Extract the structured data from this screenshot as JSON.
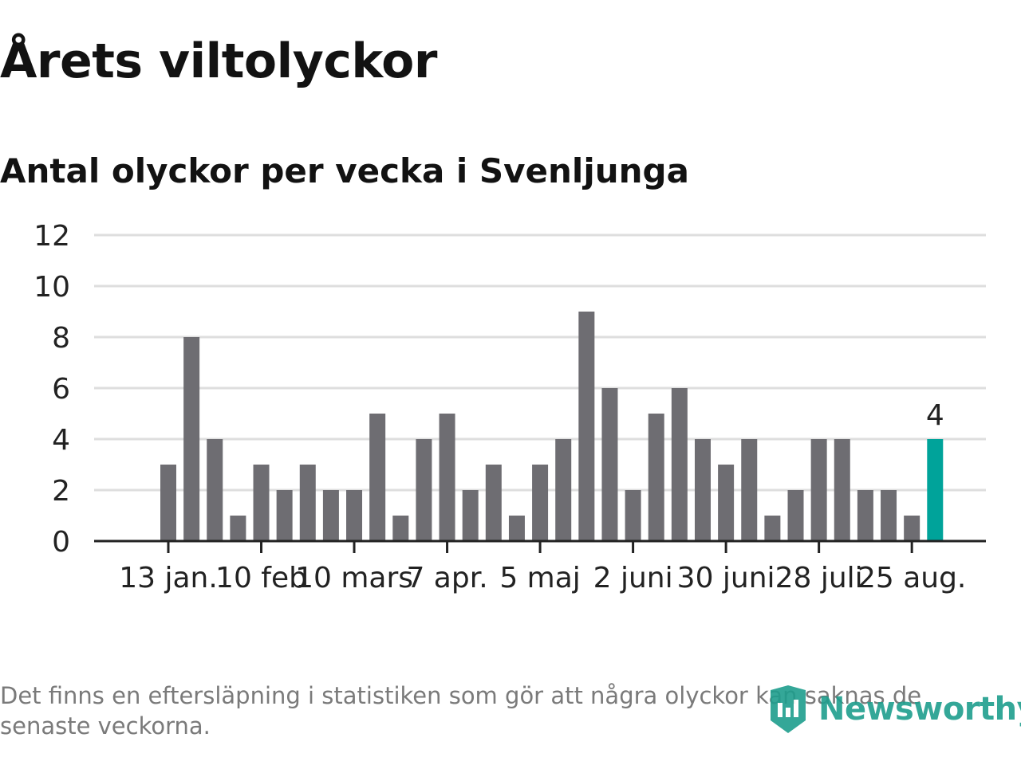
{
  "title": "Årets viltolyckor",
  "subtitle": "Antal olyckor per vecka i Svenljunga",
  "footnote": "Det finns en eftersläpning i statistiken som gör att några olyckor kan saknas de senaste veckorna.",
  "brand": {
    "name": "Newsworthy",
    "icon": "newsworthy-logo-icon"
  },
  "colors": {
    "bar": "#6e6d72",
    "highlight": "#00a39a",
    "grid": "#dedede",
    "axis": "#222222",
    "text": "#222222"
  },
  "chart_data": {
    "type": "bar",
    "title": "Årets viltolyckor",
    "subtitle": "Antal olyckor per vecka i Svenljunga",
    "ylim": [
      0,
      12
    ],
    "yticks": [
      0,
      2,
      4,
      6,
      8,
      10,
      12
    ],
    "xtick_labels": [
      "13 jan.",
      "10 feb",
      "10 mars",
      "7 apr.",
      "5 maj",
      "2 juni",
      "30 juni",
      "28 juli",
      "25 aug."
    ],
    "xtick_bar_index": [
      0,
      4,
      8,
      12,
      16,
      20,
      24,
      28,
      32
    ],
    "values": [
      3,
      8,
      4,
      1,
      3,
      2,
      3,
      2,
      2,
      5,
      1,
      4,
      5,
      2,
      3,
      1,
      3,
      4,
      9,
      6,
      2,
      5,
      6,
      4,
      3,
      4,
      1,
      2,
      4,
      4,
      2,
      2,
      1,
      4
    ],
    "highlight_index": 33,
    "highlight_label": "4",
    "grid": true
  }
}
